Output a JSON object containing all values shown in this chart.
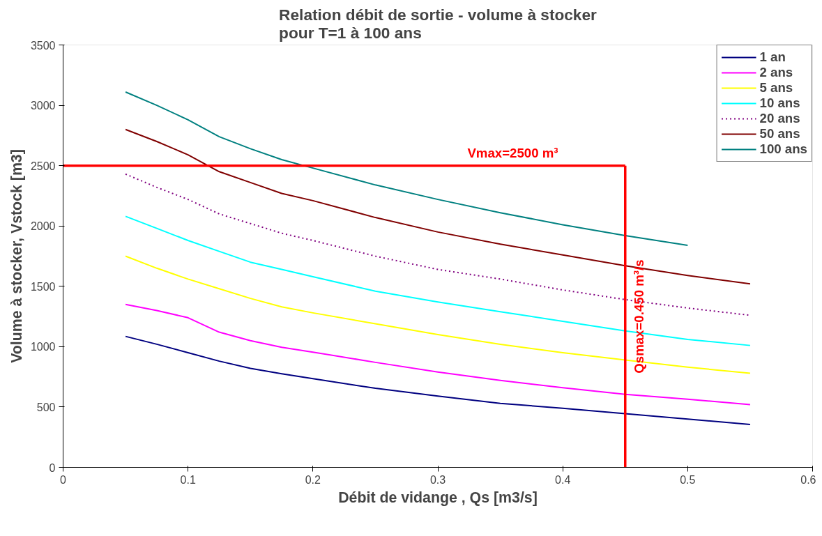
{
  "chart_data": {
    "type": "line",
    "title": "Relation débit de sortie - volume à stocker\npour T=1 à 100 ans",
    "xlabel": "Débit de vidange , Qs [m3/s]",
    "ylabel": "Volume à stocker, Vstock [m3]",
    "x": [
      0.05,
      0.075,
      0.1,
      0.125,
      0.15,
      0.175,
      0.2,
      0.25,
      0.3,
      0.35,
      0.4,
      0.45,
      0.5,
      0.55
    ],
    "series": [
      {
        "name": "1 an",
        "color": "#000080",
        "values": [
          1085,
          1020,
          950,
          880,
          820,
          775,
          735,
          655,
          590,
          530,
          490,
          445,
          400,
          355
        ]
      },
      {
        "name": "2 ans",
        "color": "#ff00ff",
        "values": [
          1350,
          1300,
          1240,
          1120,
          1050,
          995,
          955,
          870,
          790,
          720,
          660,
          605,
          565,
          520
        ]
      },
      {
        "name": "5 ans",
        "color": "#ffff00",
        "values": [
          1750,
          1650,
          1560,
          1480,
          1400,
          1330,
          1280,
          1190,
          1100,
          1020,
          950,
          890,
          830,
          780
        ]
      },
      {
        "name": "10 ans",
        "color": "#00ffff",
        "values": [
          2080,
          1980,
          1880,
          1790,
          1700,
          1640,
          1580,
          1460,
          1370,
          1290,
          1210,
          1130,
          1060,
          1010
        ]
      },
      {
        "name": "20 ans",
        "color": "#800080",
        "line_style": "dotted",
        "values": [
          2430,
          2320,
          2220,
          2100,
          2020,
          1940,
          1880,
          1750,
          1640,
          1560,
          1470,
          1390,
          1320,
          1260
        ]
      },
      {
        "name": "50 ans",
        "color": "#800000",
        "values": [
          2800,
          2700,
          2590,
          2450,
          2360,
          2270,
          2210,
          2070,
          1950,
          1850,
          1760,
          1670,
          1590,
          1520
        ]
      },
      {
        "name": "100 ans",
        "color": "#008080",
        "values": [
          3110,
          3000,
          2880,
          2740,
          2640,
          2550,
          2480,
          2340,
          2220,
          2110,
          2010,
          1920,
          1840,
          null
        ]
      }
    ],
    "ref_lines": [
      {
        "axis": "y",
        "value": 2500,
        "label": "Vmax=2500 m³",
        "color": "#ff0000"
      },
      {
        "axis": "x",
        "value": 0.45,
        "label": "Qsmax=0.450 m³/s",
        "color": "#ff0000"
      }
    ],
    "xlim": [
      0,
      0.6
    ],
    "xticks": [
      0,
      0.1,
      0.2,
      0.3,
      0.4,
      0.5,
      0.6
    ],
    "ylim": [
      0,
      3500
    ],
    "yticks": [
      0,
      500,
      1000,
      1500,
      2000,
      2500,
      3000,
      3500
    ],
    "grid": false,
    "legend": "top right",
    "line_style": "solid"
  }
}
